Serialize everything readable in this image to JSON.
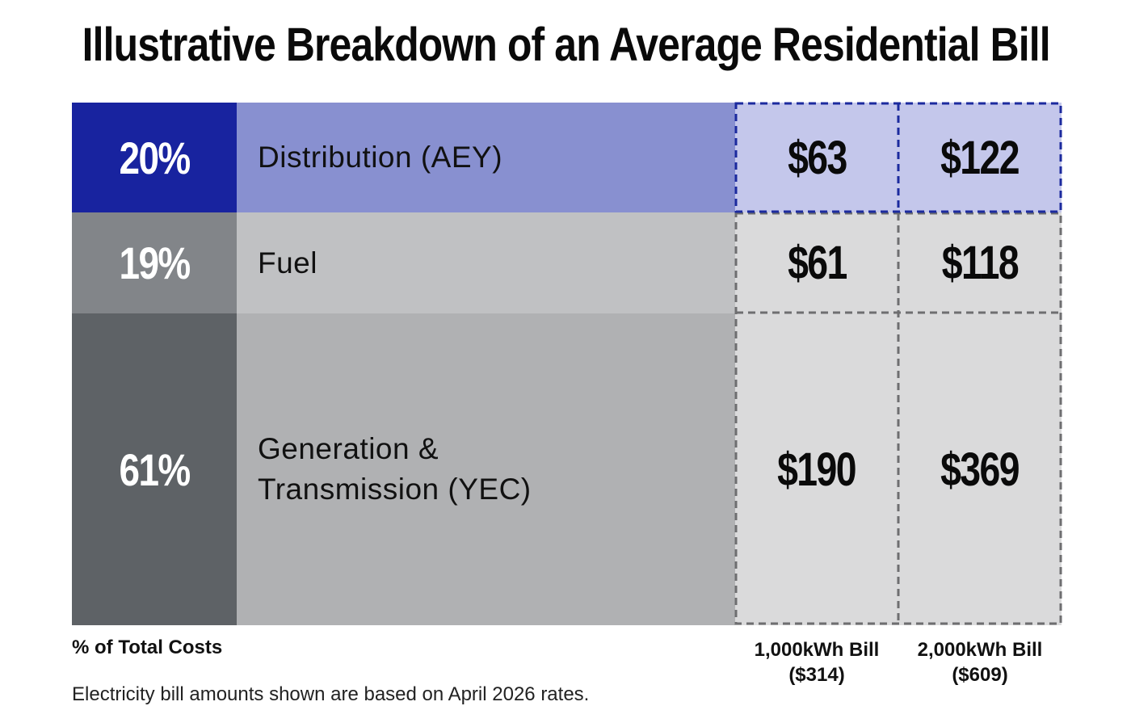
{
  "title": "Illustrative Breakdown of an Average Residential Bill",
  "chart_data": {
    "type": "table",
    "title": "Illustrative Breakdown of an Average Residential Bill",
    "percent_column_label": "% of Total Costs",
    "columns": [
      "1,000kWh Bill\n($314)",
      "2,000kWh Bill\n($609)"
    ],
    "rows": [
      {
        "category": "Distribution (AEY)",
        "percent": 20,
        "percent_label": "20%",
        "values": [
          63,
          122
        ],
        "value_labels": [
          "$63",
          "$122"
        ]
      },
      {
        "category": "Fuel",
        "percent": 19,
        "percent_label": "19%",
        "values": [
          61,
          118
        ],
        "value_labels": [
          "$61",
          "$118"
        ]
      },
      {
        "category": "Generation & Transmission (YEC)",
        "percent": 61,
        "percent_label": "61%",
        "values": [
          190,
          369
        ],
        "value_labels": [
          "$190",
          "$369"
        ]
      }
    ],
    "colors": {
      "distribution_pct": "#18239f",
      "distribution_label": "#8890d0",
      "distribution_value": "#c4c7eb",
      "distribution_border": "#1b2a9e",
      "fuel_pct": "#828589",
      "fuel_label": "#c0c1c3",
      "generation_pct": "#5e6266",
      "generation_label": "#b0b1b3",
      "gray_value": "#dadadb",
      "gray_border": "#6e6e70"
    }
  },
  "column_headers": {
    "col1_line1": "1,000kWh Bill",
    "col1_line2": "($314)",
    "col2_line1": "2,000kWh Bill",
    "col2_line2": "($609)"
  },
  "footnote": "Electricity bill amounts shown are based on April 2026 rates."
}
